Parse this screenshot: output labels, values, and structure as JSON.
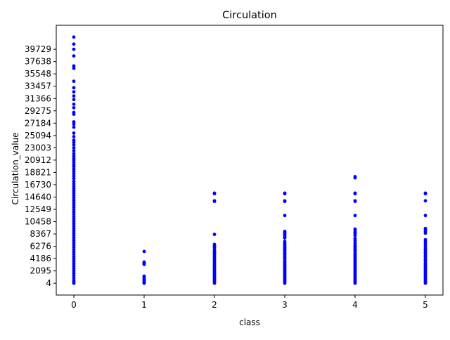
{
  "chart_data": {
    "type": "scatter",
    "title": "Circulation",
    "xlabel": "class",
    "ylabel": "Circulation_value",
    "xticks": [
      0,
      1,
      2,
      3,
      4,
      5
    ],
    "yticks": [
      4,
      2095,
      4186,
      6276,
      8367,
      10458,
      12549,
      14640,
      16730,
      18821,
      20912,
      23003,
      25094,
      27184,
      29275,
      31366,
      33457,
      35548,
      37638,
      39729
    ],
    "xlim": [
      -0.25,
      5.25
    ],
    "ylim": [
      -2000,
      43800
    ],
    "grid": false,
    "legend": "none",
    "marker_color": "#0000ff",
    "series": [
      {
        "x": 0,
        "y": [
          41800,
          40600,
          39729,
          38600,
          36900,
          36500,
          34300,
          33200,
          32500,
          31800,
          31200,
          30400,
          29800,
          29000,
          28700,
          27400,
          27000,
          26500,
          25500,
          24900,
          24300,
          23900,
          23500,
          23003,
          22500,
          22000,
          21600,
          21200,
          20912,
          20500,
          20100,
          19800,
          19400,
          19000,
          18600,
          18200,
          17800,
          17300,
          16900,
          16500,
          16100,
          15700,
          15300,
          14900,
          14500,
          14100,
          13700,
          13300,
          12900,
          12500,
          12100,
          11700,
          11300,
          10900,
          10500,
          10100,
          9700,
          9300,
          8900,
          8500,
          8100,
          7700,
          7300,
          6900,
          6500,
          6100,
          5700,
          5300,
          4900,
          4500,
          4100,
          3700,
          3300,
          2900,
          2500,
          2100,
          1700,
          1300,
          900,
          500,
          200,
          4
        ]
      },
      {
        "x": 1,
        "y": [
          5400,
          3600,
          3500,
          3400,
          3300,
          3200,
          1200,
          1000,
          800,
          600,
          400,
          250,
          100,
          4
        ]
      },
      {
        "x": 2,
        "y": [
          15300,
          15200,
          14000,
          13900,
          8300,
          6600,
          6400,
          6200,
          6000,
          5600,
          5400,
          5200,
          5000,
          4800,
          4500,
          4300,
          4100,
          3800,
          3600,
          3400,
          3200,
          3000,
          2800,
          2600,
          2400,
          2200,
          2000,
          1800,
          1600,
          1400,
          1200,
          1000,
          800,
          600,
          400,
          200,
          4
        ]
      },
      {
        "x": 3,
        "y": [
          15300,
          15200,
          14000,
          13900,
          11500,
          8800,
          8600,
          8400,
          8200,
          7900,
          7700,
          7100,
          6800,
          6500,
          6300,
          6100,
          5900,
          5700,
          5500,
          5200,
          5000,
          4800,
          4500,
          4300,
          4100,
          3800,
          3600,
          3400,
          3200,
          3000,
          2800,
          2600,
          2400,
          2200,
          2000,
          1800,
          1600,
          1400,
          1200,
          1000,
          800,
          600,
          400,
          200,
          4
        ]
      },
      {
        "x": 4,
        "y": [
          18100,
          17900,
          15300,
          15200,
          14000,
          13900,
          11500,
          9200,
          8900,
          8600,
          8400,
          8100,
          7600,
          7300,
          7000,
          6700,
          6400,
          6200,
          6000,
          5800,
          5600,
          5400,
          5100,
          4900,
          4700,
          4500,
          4300,
          4100,
          3900,
          3700,
          3500,
          3300,
          3100,
          2900,
          2700,
          2500,
          2300,
          2100,
          1900,
          1700,
          1500,
          1300,
          1100,
          900,
          700,
          500,
          300,
          100,
          4
        ]
      },
      {
        "x": 5,
        "y": [
          15300,
          15200,
          14000,
          11500,
          9300,
          9100,
          8800,
          8500,
          7400,
          7100,
          6800,
          6400,
          6000,
          5700,
          5500,
          5200,
          5000,
          4700,
          4500,
          4200,
          4000,
          3800,
          3500,
          3300,
          3100,
          2900,
          2700,
          2500,
          2300,
          2100,
          1900,
          1700,
          1500,
          1300,
          1100,
          900,
          700,
          500,
          300,
          100,
          4
        ]
      }
    ]
  }
}
